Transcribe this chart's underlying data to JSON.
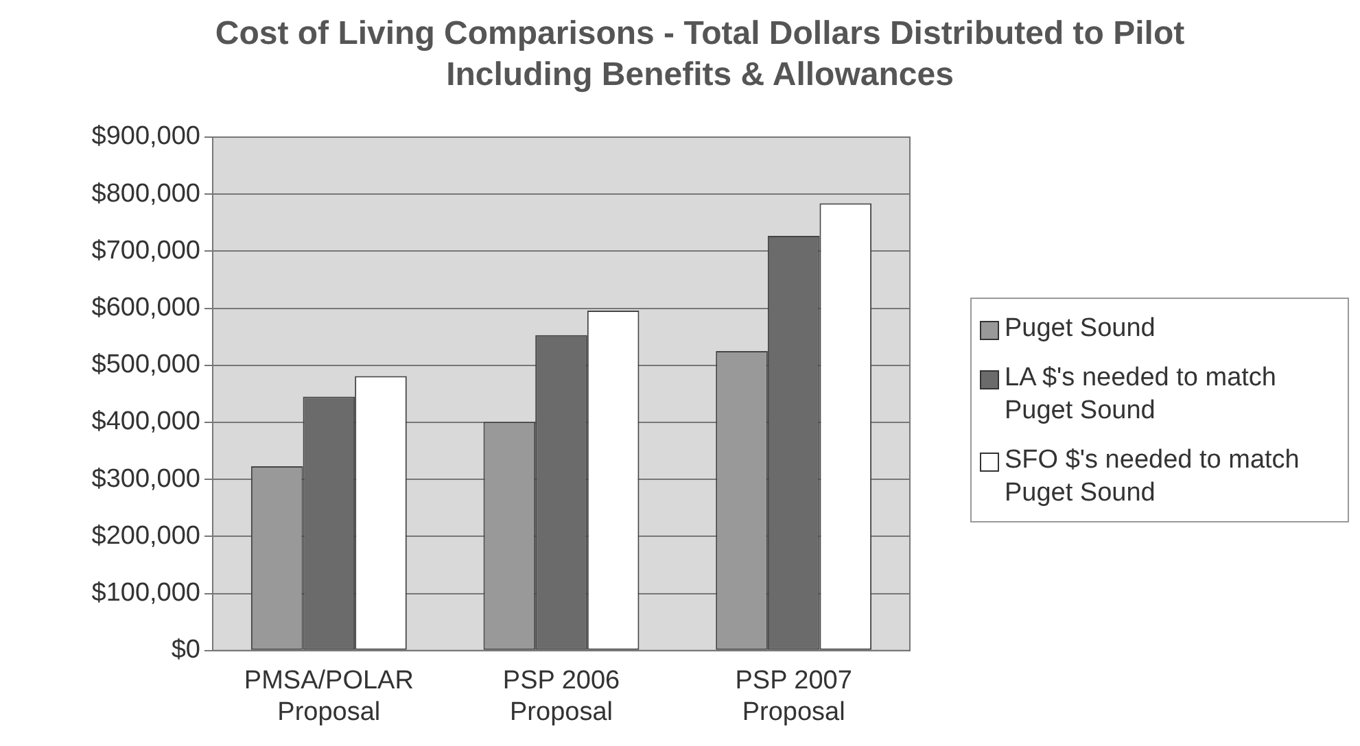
{
  "chart_data": {
    "type": "bar",
    "title": "Cost of Living Comparisons - Total Dollars Distributed to Pilot Including Benefits & Allowances",
    "categories": [
      "PMSA/POLAR Proposal",
      "PSP 2006 Proposal",
      "PSP 2007 Proposal"
    ],
    "series": [
      {
        "name": "Puget Sound",
        "color": "#999999",
        "values": [
          323000,
          401000,
          525000
        ]
      },
      {
        "name": "LA $'s needed to match Puget Sound",
        "color": "#6b6b6b",
        "values": [
          445000,
          553000,
          727000
        ]
      },
      {
        "name": "SFO $'s needed to match Puget Sound",
        "color": "#ffffff",
        "values": [
          481000,
          596000,
          784000
        ]
      }
    ],
    "ylim": [
      0,
      900000
    ],
    "yticks": [
      {
        "value": 0,
        "label": "$0"
      },
      {
        "value": 100000,
        "label": "$100,000"
      },
      {
        "value": 200000,
        "label": "$200,000"
      },
      {
        "value": 300000,
        "label": "$300,000"
      },
      {
        "value": 400000,
        "label": "$400,000"
      },
      {
        "value": 500000,
        "label": "$500,000"
      },
      {
        "value": 600000,
        "label": "$600,000"
      },
      {
        "value": 700000,
        "label": "$700,000"
      },
      {
        "value": 800000,
        "label": "$800,000"
      },
      {
        "value": 900000,
        "label": "$900,000"
      }
    ],
    "grid": "y",
    "legend": "right"
  }
}
